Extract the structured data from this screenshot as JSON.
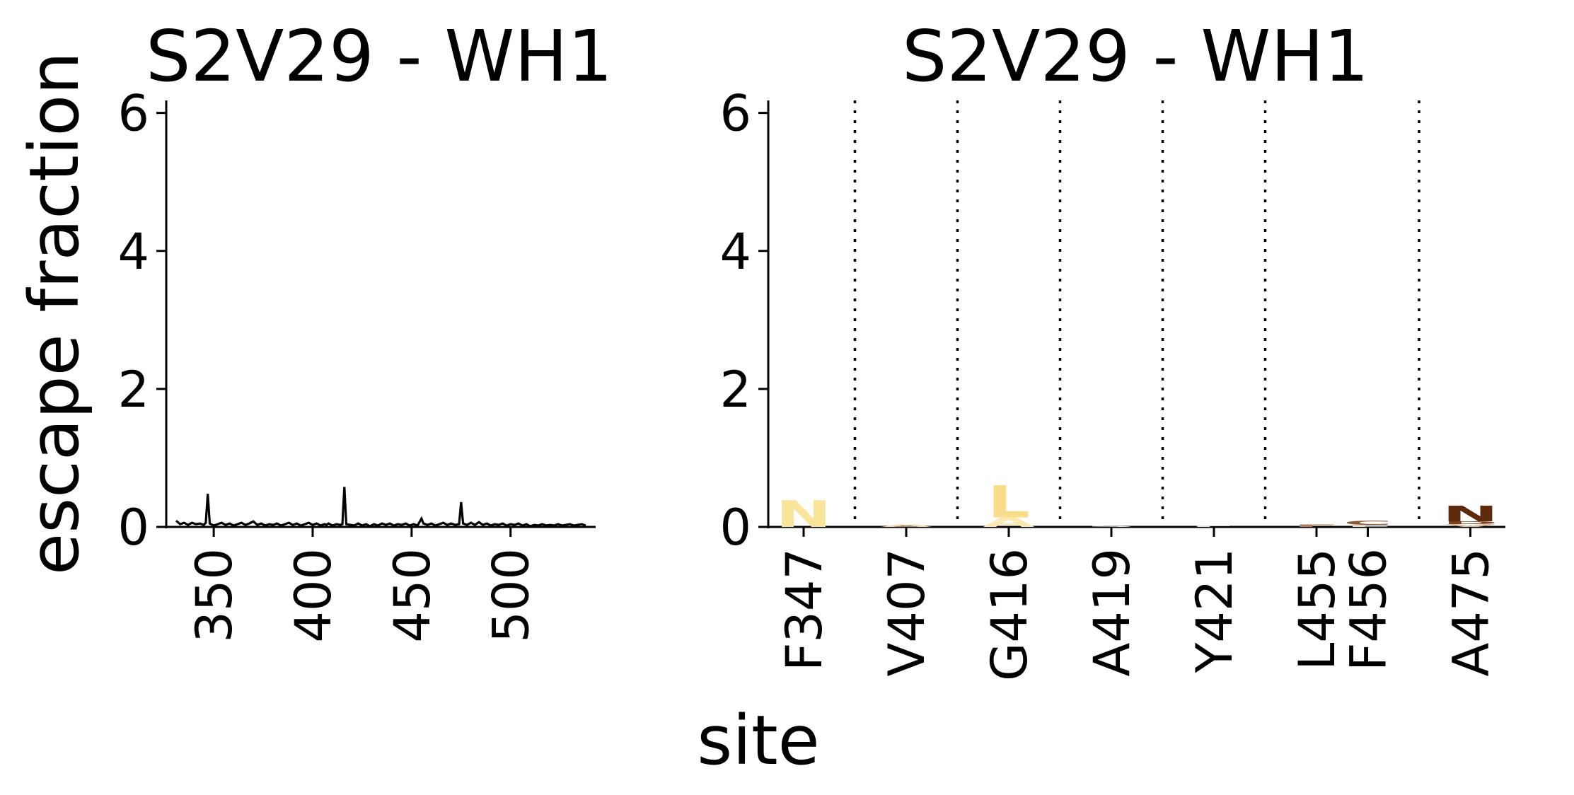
{
  "figure": {
    "ylabel": "escape fraction",
    "xlabel": "site"
  },
  "chart_data": [
    {
      "type": "line",
      "title": "S2V29 - WH1",
      "xlabel": "",
      "ylabel": "",
      "xlim": [
        326,
        543
      ],
      "ylim": [
        0,
        6.15
      ],
      "xticks": [
        350,
        400,
        450,
        500
      ],
      "yticks": [
        0,
        2,
        4,
        6
      ],
      "grid": false,
      "baseline": [
        [
          331,
          0.09
        ],
        [
          333,
          0.04
        ],
        [
          335,
          0.06
        ],
        [
          337,
          0.03
        ],
        [
          339,
          0.06
        ],
        [
          341,
          0.04
        ],
        [
          343,
          0.05
        ],
        [
          345,
          0.03
        ],
        [
          346,
          0.06
        ],
        [
          347,
          0.48
        ],
        [
          348,
          0.05
        ],
        [
          350,
          0.02
        ],
        [
          352,
          0.04
        ],
        [
          354,
          0.06
        ],
        [
          356,
          0.03
        ],
        [
          358,
          0.05
        ],
        [
          360,
          0.02
        ],
        [
          362,
          0.04
        ],
        [
          364,
          0.06
        ],
        [
          366,
          0.03
        ],
        [
          368,
          0.05
        ],
        [
          370,
          0.08
        ],
        [
          372,
          0.03
        ],
        [
          374,
          0.05
        ],
        [
          376,
          0.02
        ],
        [
          378,
          0.04
        ],
        [
          380,
          0.03
        ],
        [
          382,
          0.05
        ],
        [
          384,
          0.02
        ],
        [
          386,
          0.04
        ],
        [
          388,
          0.06
        ],
        [
          390,
          0.03
        ],
        [
          392,
          0.05
        ],
        [
          394,
          0.02
        ],
        [
          396,
          0.04
        ],
        [
          398,
          0.06
        ],
        [
          400,
          0.03
        ],
        [
          402,
          0.05
        ],
        [
          404,
          0.02
        ],
        [
          406,
          0.04
        ],
        [
          407,
          0.03
        ],
        [
          408,
          0.05
        ],
        [
          410,
          0.02
        ],
        [
          412,
          0.04
        ],
        [
          414,
          0.03
        ],
        [
          415,
          0.04
        ],
        [
          416,
          0.58
        ],
        [
          417,
          0.04
        ],
        [
          419,
          0.03
        ],
        [
          421,
          0.02
        ],
        [
          423,
          0.05
        ],
        [
          425,
          0.02
        ],
        [
          427,
          0.04
        ],
        [
          429,
          0.01
        ],
        [
          431,
          0.04
        ],
        [
          433,
          0.02
        ],
        [
          435,
          0.05
        ],
        [
          437,
          0.03
        ],
        [
          439,
          0.05
        ],
        [
          441,
          0.02
        ],
        [
          443,
          0.04
        ],
        [
          445,
          0.03
        ],
        [
          447,
          0.05
        ],
        [
          449,
          0.02
        ],
        [
          451,
          0.04
        ],
        [
          453,
          0.02
        ],
        [
          455,
          0.12
        ],
        [
          456,
          0.05
        ],
        [
          458,
          0.03
        ],
        [
          460,
          0.05
        ],
        [
          462,
          0.02
        ],
        [
          464,
          0.04
        ],
        [
          466,
          0.06
        ],
        [
          468,
          0.03
        ],
        [
          470,
          0.05
        ],
        [
          472,
          0.03
        ],
        [
          474,
          0.04
        ],
        [
          475,
          0.36
        ],
        [
          476,
          0.05
        ],
        [
          478,
          0.03
        ],
        [
          480,
          0.06
        ],
        [
          482,
          0.03
        ],
        [
          484,
          0.07
        ],
        [
          486,
          0.03
        ],
        [
          488,
          0.05
        ],
        [
          490,
          0.02
        ],
        [
          492,
          0.04
        ],
        [
          494,
          0.03
        ],
        [
          496,
          0.05
        ],
        [
          498,
          0.02
        ],
        [
          500,
          0.04
        ],
        [
          502,
          0.03
        ],
        [
          504,
          0.05
        ],
        [
          506,
          0.02
        ],
        [
          508,
          0.04
        ],
        [
          510,
          0.01
        ],
        [
          512,
          0.03
        ],
        [
          514,
          0.02
        ],
        [
          516,
          0.04
        ],
        [
          518,
          0.02
        ],
        [
          520,
          0.03
        ],
        [
          522,
          0.02
        ],
        [
          524,
          0.04
        ],
        [
          526,
          0.02
        ],
        [
          528,
          0.03
        ],
        [
          530,
          0.04
        ],
        [
          532,
          0.02
        ],
        [
          534,
          0.03
        ],
        [
          536,
          0.04
        ],
        [
          538,
          0.02
        ]
      ]
    },
    {
      "type": "logo",
      "title": "S2V29 - WH1",
      "xlabel": "",
      "ylabel": "",
      "ylim": [
        0,
        6.15
      ],
      "yticks": [
        0,
        2,
        4,
        6
      ],
      "grid": false,
      "sites": [
        {
          "label": "F347",
          "pos": 0,
          "letters": [
            {
              "aa": "N",
              "height": 0.38,
              "color": "#f9e59a"
            }
          ]
        },
        {
          "label": "V407",
          "pos": 2,
          "letters": [
            {
              "aa": "A",
              "height": 0.03,
              "color": "#f3d4a4"
            }
          ]
        },
        {
          "label": "G416",
          "pos": 4,
          "letters": [
            {
              "aa": "A",
              "height": 0.14,
              "color": "#fbe9b0"
            },
            {
              "aa": "L",
              "height": 0.46,
              "color": "#f8de8a"
            }
          ]
        },
        {
          "label": "A419",
          "pos": 6,
          "letters": [
            {
              "aa": "S",
              "height": 0.02,
              "color": "#f1e4e4"
            }
          ]
        },
        {
          "label": "Y421",
          "pos": 8,
          "letters": [
            {
              "aa": "F",
              "height": 0.02,
              "color": "#f3dcd6"
            }
          ]
        },
        {
          "label": "L455",
          "pos": 10,
          "letters": [
            {
              "aa": "F",
              "height": 0.03,
              "color": "#b07a52"
            }
          ]
        },
        {
          "label": "F456",
          "pos": 11,
          "letters": [
            {
              "aa": "L",
              "height": 0.03,
              "color": "#e8d8c8"
            },
            {
              "aa": "C",
              "height": 0.06,
              "color": "#8c5a34"
            }
          ]
        },
        {
          "label": "A475",
          "pos": 13,
          "letters": [
            {
              "aa": "V",
              "height": 0.04,
              "color": "#d9b8a0"
            },
            {
              "aa": "D",
              "height": 0.04,
              "color": "#7a3e1c"
            },
            {
              "aa": "N",
              "height": 0.22,
              "color": "#5e2a0c"
            }
          ]
        }
      ],
      "separators_after_pos": [
        0,
        2,
        4,
        6,
        8,
        11
      ]
    }
  ]
}
